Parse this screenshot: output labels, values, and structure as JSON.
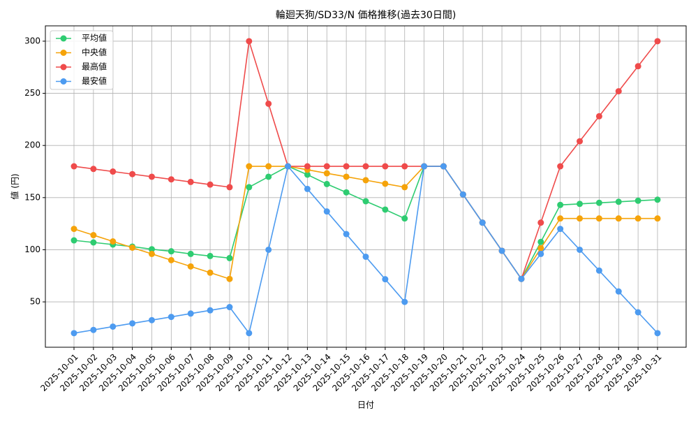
{
  "chart_data": {
    "type": "line",
    "title": "輪廻天狗/SD33/N 価格推移(過去30日間)",
    "x_label": "日付",
    "y_label": "値 (円)",
    "x": [
      "2025-10-01",
      "2025-10-02",
      "2025-10-03",
      "2025-10-04",
      "2025-10-05",
      "2025-10-06",
      "2025-10-07",
      "2025-10-08",
      "2025-10-09",
      "2025-10-10",
      "2025-10-11",
      "2025-10-12",
      "2025-10-13",
      "2025-10-14",
      "2025-10-15",
      "2025-10-16",
      "2025-10-17",
      "2025-10-18",
      "2025-10-19",
      "2025-10-20",
      "2025-10-21",
      "2025-10-22",
      "2025-10-23",
      "2025-10-24",
      "2025-10-25",
      "2025-10-26",
      "2025-10-27",
      "2025-10-28",
      "2025-10-29",
      "2025-10-30",
      "2025-10-31"
    ],
    "series": [
      {
        "name": "平均値",
        "color": "#2ecc71",
        "values": [
          109,
          107,
          105,
          103,
          100.5,
          98.5,
          96,
          94,
          92,
          160,
          170,
          180,
          172,
          163,
          155,
          146.5,
          138.5,
          130,
          180,
          180,
          153,
          126,
          99,
          72,
          107.5,
          143,
          144,
          145,
          146,
          147,
          148
        ]
      },
      {
        "name": "中央値",
        "color": "#f5a30a",
        "values": [
          120,
          114,
          108,
          102,
          96,
          90,
          84,
          78,
          72,
          180,
          180,
          180,
          176.7,
          173.3,
          170,
          166.7,
          163.3,
          160,
          180,
          180,
          153,
          126,
          99,
          72,
          101.5,
          130,
          130,
          130,
          130,
          130,
          130
        ]
      },
      {
        "name": "最高値",
        "color": "#ef4b4b",
        "values": [
          180,
          177.5,
          175,
          172.5,
          170,
          167.5,
          165,
          162.5,
          160,
          300,
          240,
          180,
          180,
          180,
          180,
          180,
          180,
          180,
          180,
          180,
          153,
          126,
          99,
          72,
          126,
          180,
          204,
          228,
          252,
          276,
          300
        ]
      },
      {
        "name": "最安値",
        "color": "#4d9bf0",
        "values": [
          20,
          23.1,
          26.3,
          29.4,
          32.5,
          35.6,
          38.8,
          41.9,
          45,
          20,
          100,
          180,
          158.3,
          136.7,
          115,
          93.3,
          71.7,
          50,
          180,
          180,
          153,
          126,
          99,
          72,
          96,
          120,
          100,
          80,
          60,
          40,
          20
        ]
      }
    ],
    "ylim": [
      6.5,
      314.7
    ],
    "yticks": [
      50,
      100,
      150,
      200,
      250,
      300
    ],
    "grid": true,
    "legend": "upper-left"
  }
}
